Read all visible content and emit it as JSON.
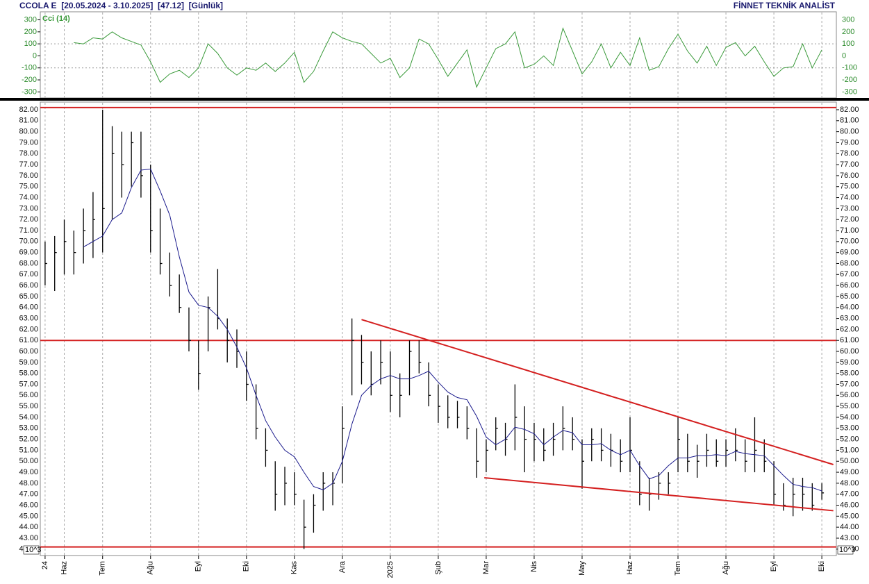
{
  "header": {
    "title": "CCOLA E  [20.05.2024 - 3.10.2025]  [47.12]  [Günlük]",
    "brand": "FİNNET TEKNİK ANALİST"
  },
  "chart_data": [
    {
      "type": "line",
      "series": [
        {
          "name": "Cci (14)",
          "color": "#3a9a3a",
          "values": [
            null,
            null,
            null,
            110,
            100,
            150,
            140,
            200,
            150,
            120,
            90,
            -50,
            -220,
            -150,
            -120,
            -180,
            -100,
            100,
            20,
            -100,
            -160,
            -100,
            -120,
            -60,
            -130,
            -60,
            30,
            -220,
            -130,
            40,
            200,
            150,
            120,
            100,
            20,
            -60,
            -20,
            -180,
            -100,
            140,
            100,
            -30,
            -170,
            -60,
            50,
            -260,
            -100,
            60,
            100,
            200,
            -100,
            -70,
            0,
            -80,
            230,
            40,
            -150,
            -50,
            100,
            -100,
            30,
            -80,
            150,
            -120,
            -90,
            60,
            180,
            40,
            -60,
            80,
            -80,
            70,
            110,
            0,
            80,
            -50,
            -170,
            -100,
            -90,
            100,
            -100,
            50
          ]
        }
      ],
      "ylim": [
        -350,
        361
      ],
      "yticks": [
        300,
        200,
        100,
        0,
        -100,
        -200,
        -300
      ],
      "hlines": [
        100,
        -100
      ],
      "grid": true
    },
    {
      "type": "ohlc",
      "scale_note": "10^3",
      "color": "#000000",
      "categories": [
        "24",
        null,
        "Haz",
        null,
        null,
        null,
        "Tem",
        null,
        null,
        null,
        null,
        "Ağu",
        null,
        null,
        null,
        null,
        "Eyl",
        null,
        null,
        null,
        null,
        "Eki",
        null,
        null,
        null,
        null,
        "Kas",
        null,
        null,
        null,
        null,
        "Ara",
        null,
        null,
        null,
        null,
        "2025",
        null,
        null,
        null,
        null,
        "Şub",
        null,
        null,
        null,
        null,
        "Mar",
        null,
        null,
        null,
        null,
        "Nis",
        null,
        null,
        null,
        null,
        "May",
        null,
        null,
        null,
        null,
        "Haz",
        null,
        null,
        null,
        null,
        "Tem",
        null,
        null,
        null,
        null,
        "Ağu",
        null,
        null,
        null,
        null,
        "Eyl",
        null,
        null,
        null,
        null,
        "Eki"
      ],
      "high": [
        70,
        70.5,
        72,
        71,
        73,
        74.5,
        82,
        80.5,
        80,
        80,
        80,
        77,
        73,
        69,
        67,
        64,
        61,
        65,
        67.5,
        63,
        62,
        60,
        57,
        53,
        50,
        49.5,
        49,
        46.5,
        47,
        49,
        49,
        55,
        63,
        61.5,
        60,
        61,
        60,
        58,
        61,
        61,
        59,
        57,
        56,
        55.5,
        55,
        53,
        52,
        54,
        53.5,
        57,
        55,
        53.5,
        53,
        53.5,
        55,
        54,
        52,
        53,
        53,
        52.5,
        52,
        54,
        50,
        48.5,
        49,
        49,
        54,
        52.5,
        51.5,
        52.5,
        52,
        52,
        53,
        52,
        54,
        52,
        50,
        48,
        48.5,
        48.5,
        48,
        48
      ],
      "low": [
        66,
        65.5,
        67,
        67,
        68,
        68.5,
        69,
        72,
        74,
        75,
        74,
        69,
        67,
        65,
        63.5,
        60,
        56.5,
        60,
        62,
        59,
        58.5,
        55.5,
        52,
        49.5,
        45.5,
        46,
        46,
        42,
        43.5,
        45.5,
        46,
        48,
        56,
        57,
        56,
        57,
        54.5,
        54,
        56,
        58,
        55,
        53.5,
        53,
        53,
        52,
        48.5,
        49,
        51,
        50.5,
        51,
        49,
        50,
        50,
        50.5,
        51,
        51,
        47.5,
        50,
        50,
        49.5,
        49,
        49,
        46,
        45.5,
        46.5,
        47,
        49,
        49,
        48.5,
        49.5,
        49.5,
        49.5,
        50,
        49,
        49,
        49,
        46,
        45.5,
        45,
        45.5,
        45.5,
        46.5
      ],
      "close": [
        68,
        69,
        70,
        69,
        71,
        72,
        73,
        78,
        77,
        79,
        76,
        71,
        68,
        66,
        64,
        61,
        58,
        64,
        63,
        61,
        60,
        57,
        53,
        51,
        47,
        48,
        47,
        44,
        46,
        48,
        48,
        53,
        61,
        59,
        57,
        59,
        56,
        56,
        60,
        59,
        56,
        55,
        54,
        54,
        53,
        50,
        51,
        53,
        52,
        54,
        52,
        52,
        51,
        52,
        53,
        52,
        50,
        52,
        51,
        51,
        50,
        51,
        47,
        47,
        48,
        48,
        52,
        50,
        50,
        51,
        50,
        51,
        51,
        50,
        51,
        50,
        47,
        46,
        47,
        47,
        46,
        47.12
      ],
      "ma": {
        "color": "#1a1a8c",
        "values": [
          null,
          null,
          null,
          null,
          69.5,
          70,
          70.5,
          72,
          72.6,
          74.9,
          76.5,
          76.6,
          74.6,
          72.4,
          68.6,
          65.4,
          64.2,
          64,
          63.2,
          62,
          60.4,
          58.5,
          56,
          53.7,
          52.2,
          51,
          50.4,
          49,
          47.7,
          47.4,
          48,
          50,
          53.4,
          56,
          56.9,
          57.5,
          57.8,
          57.5,
          57.5,
          57.8,
          58.2,
          57.2,
          56.3,
          55.8,
          55.6,
          54.1,
          52.2,
          51.5,
          52,
          53.1,
          52.9,
          52.5,
          51.5,
          52.2,
          52.8,
          52.6,
          51.5,
          51.5,
          51.6,
          51,
          50.6,
          51,
          49.6,
          48.4,
          48.7,
          49.6,
          50.3,
          50.3,
          50.5,
          50.5,
          50.6,
          50.5,
          50.9,
          50.7,
          50.6,
          50.5,
          49.6,
          48.7,
          47.9,
          47.7,
          47.6,
          47.3
        ]
      },
      "line_color": "#d42020",
      "hlines": [
        82.2,
        61,
        42.2
      ],
      "trendlines": [
        {
          "x": [
            33,
            82.2
          ],
          "y": [
            62.9,
            49.7
          ]
        },
        {
          "x": [
            45.8,
            82.2
          ],
          "y": [
            48.5,
            45.5
          ]
        }
      ],
      "ylim": [
        41.4,
        82.6
      ],
      "yticks": [
        {
          "value": 42,
          "label": "42.00"
        },
        {
          "value": 43,
          "label": "43.00"
        },
        {
          "value": 44,
          "label": "44.00"
        },
        {
          "value": 45,
          "label": "45.00"
        },
        {
          "value": 46,
          "label": "46.00"
        },
        {
          "value": 47,
          "label": "47.00"
        },
        {
          "value": 48,
          "label": "48.00"
        },
        {
          "value": 49,
          "label": "49.00"
        },
        {
          "value": 50,
          "label": "50.00"
        },
        {
          "value": 51,
          "label": "51.00"
        },
        {
          "value": 52,
          "label": "52.00"
        },
        {
          "value": 53,
          "label": "53.00"
        },
        {
          "value": 54,
          "label": "54.00"
        },
        {
          "value": 55,
          "label": "55.00"
        },
        {
          "value": 56,
          "label": "56.00"
        },
        {
          "value": 57,
          "label": "57.00"
        },
        {
          "value": 58,
          "label": "58.00"
        },
        {
          "value": 59,
          "label": "59.00"
        },
        {
          "value": 60,
          "label": "60.00"
        },
        {
          "value": 61,
          "label": "61.00"
        },
        {
          "value": 62,
          "label": "62.00"
        },
        {
          "value": 63,
          "label": "63.00"
        },
        {
          "value": 64,
          "label": "64.00"
        },
        {
          "value": 65,
          "label": "65.00"
        },
        {
          "value": 66,
          "label": "66.00"
        },
        {
          "value": 67,
          "label": "67.00"
        },
        {
          "value": 68,
          "label": "68.00"
        },
        {
          "value": 69,
          "label": "69.00"
        },
        {
          "value": 70,
          "label": "70.00"
        },
        {
          "value": 71,
          "label": "71.00"
        },
        {
          "value": 72,
          "label": "72.00"
        },
        {
          "value": 73,
          "label": "73.00"
        },
        {
          "value": 74,
          "label": "74.00"
        },
        {
          "value": 75,
          "label": "75.00"
        },
        {
          "value": 76,
          "label": "76.00"
        },
        {
          "value": 77,
          "label": "77.00"
        },
        {
          "value": 78,
          "label": "78.00"
        },
        {
          "value": 79,
          "label": "79.00"
        },
        {
          "value": 80,
          "label": "80.00"
        },
        {
          "value": 81,
          "label": "81.00"
        },
        {
          "value": 82,
          "label": "82.00"
        }
      ]
    }
  ]
}
